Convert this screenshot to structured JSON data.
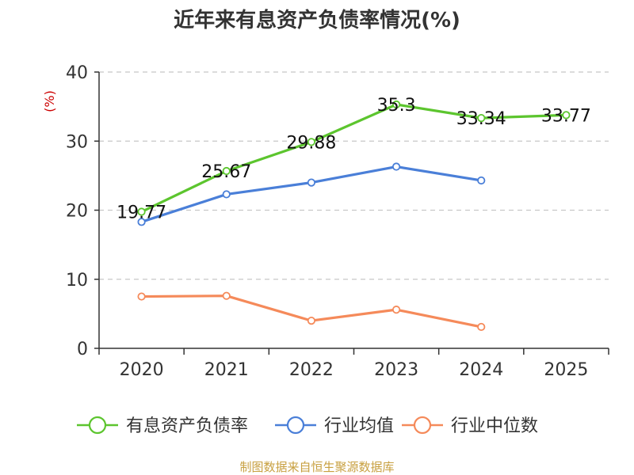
{
  "chart_data": {
    "type": "line",
    "title": "近年来有息资产负债率情况(%)",
    "ylabel": "(%)",
    "xlabel": "",
    "categories": [
      "2020",
      "2021",
      "2022",
      "2023",
      "2024",
      "2025"
    ],
    "ylim": [
      0,
      40
    ],
    "yticks": [
      0,
      10,
      20,
      30,
      40
    ],
    "grid": true,
    "legend_position": "bottom",
    "series": [
      {
        "name": "有息资产负债率",
        "color": "#5cc52e",
        "values": [
          19.77,
          25.67,
          29.88,
          35.3,
          33.34,
          33.77
        ],
        "show_labels": true
      },
      {
        "name": "行业均值",
        "color": "#4a7fd8",
        "values": [
          18.3,
          22.3,
          24.0,
          26.3,
          24.3,
          null
        ],
        "show_labels": false
      },
      {
        "name": "行业中位数",
        "color": "#f58a5a",
        "values": [
          7.5,
          7.6,
          4.0,
          5.6,
          3.1,
          null
        ],
        "show_labels": false
      }
    ],
    "source": "制图数据来自恒生聚源数据库"
  }
}
